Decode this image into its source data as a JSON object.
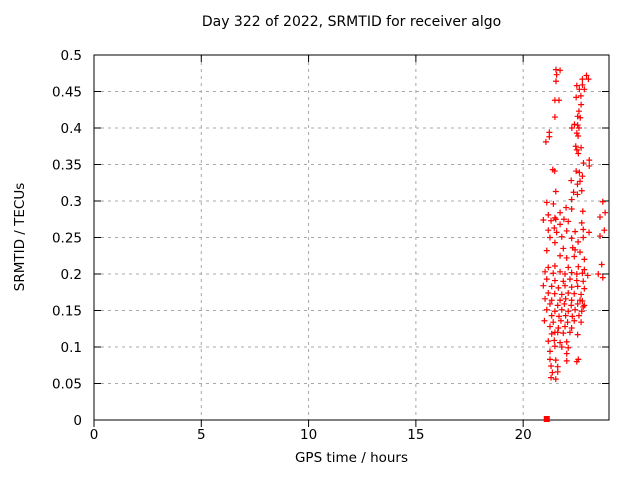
{
  "chart_data": {
    "type": "scatter",
    "title": "Day 322 of 2022, SRMTID for receiver algo",
    "xlabel": "GPS time / hours",
    "ylabel": "SRMTID / TECUs",
    "xlim": [
      0,
      24
    ],
    "ylim": [
      0,
      0.5
    ],
    "x_ticks": [
      0,
      5,
      10,
      15,
      20
    ],
    "y_ticks": [
      0,
      0.05,
      0.1,
      0.15,
      0.2,
      0.25,
      0.3,
      0.35,
      0.4,
      0.45,
      0.5
    ],
    "grid": true,
    "legend": "none",
    "colors": {
      "marker": "#ff0000",
      "grid": "#a8a8a8",
      "axis": "#000000",
      "text": "#000000",
      "background": "#ffffff"
    },
    "series": [
      {
        "name": "SRMTID",
        "marker": "plus",
        "color": "#ff0000",
        "points": [
          [
            21.53,
            0.48
          ],
          [
            21.72,
            0.479
          ],
          [
            21.56,
            0.473
          ],
          [
            21.53,
            0.464
          ],
          [
            22.95,
            0.472
          ],
          [
            22.76,
            0.467
          ],
          [
            23.04,
            0.467
          ],
          [
            22.76,
            0.459
          ],
          [
            22.5,
            0.458
          ],
          [
            22.62,
            0.453
          ],
          [
            22.85,
            0.453
          ],
          [
            22.47,
            0.442
          ],
          [
            22.69,
            0.444
          ],
          [
            21.48,
            0.438
          ],
          [
            21.67,
            0.438
          ],
          [
            22.7,
            0.432
          ],
          [
            22.6,
            0.423
          ],
          [
            22.54,
            0.416
          ],
          [
            21.48,
            0.415
          ],
          [
            22.66,
            0.414
          ],
          [
            22.39,
            0.405
          ],
          [
            22.54,
            0.404
          ],
          [
            22.6,
            0.4
          ],
          [
            22.27,
            0.4
          ],
          [
            21.22,
            0.394
          ],
          [
            22.5,
            0.393
          ],
          [
            21.22,
            0.388
          ],
          [
            22.56,
            0.389
          ],
          [
            21.06,
            0.381
          ],
          [
            22.45,
            0.375
          ],
          [
            22.7,
            0.373
          ],
          [
            22.5,
            0.37
          ],
          [
            22.57,
            0.365
          ],
          [
            23.08,
            0.356
          ],
          [
            22.81,
            0.352
          ],
          [
            23.08,
            0.348
          ],
          [
            21.38,
            0.343
          ],
          [
            21.47,
            0.341
          ],
          [
            22.47,
            0.341
          ],
          [
            22.62,
            0.339
          ],
          [
            22.76,
            0.334
          ],
          [
            22.65,
            0.327
          ],
          [
            22.24,
            0.328
          ],
          [
            22.53,
            0.323
          ],
          [
            21.52,
            0.313
          ],
          [
            22.35,
            0.312
          ],
          [
            22.53,
            0.309
          ],
          [
            22.73,
            0.314
          ],
          [
            21.1,
            0.298
          ],
          [
            21.41,
            0.296
          ],
          [
            22.26,
            0.302
          ],
          [
            23.71,
            0.299
          ],
          [
            22.0,
            0.291
          ],
          [
            22.26,
            0.289
          ],
          [
            23.82,
            0.284
          ],
          [
            22.78,
            0.286
          ],
          [
            21.72,
            0.284
          ],
          [
            21.17,
            0.281
          ],
          [
            23.58,
            0.278
          ],
          [
            21.48,
            0.277
          ],
          [
            21.9,
            0.275
          ],
          [
            21.52,
            0.275
          ],
          [
            20.94,
            0.274
          ],
          [
            21.3,
            0.273
          ],
          [
            22.1,
            0.272
          ],
          [
            22.73,
            0.27
          ],
          [
            21.72,
            0.268
          ],
          [
            21.45,
            0.263
          ],
          [
            22.8,
            0.261
          ],
          [
            21.17,
            0.26
          ],
          [
            23.78,
            0.26
          ],
          [
            22.03,
            0.259
          ],
          [
            21.56,
            0.257
          ],
          [
            23.07,
            0.257
          ],
          [
            22.42,
            0.258
          ],
          [
            23.58,
            0.252
          ],
          [
            21.25,
            0.25
          ],
          [
            21.8,
            0.251
          ],
          [
            22.26,
            0.249
          ],
          [
            22.8,
            0.25
          ],
          [
            21.48,
            0.243
          ],
          [
            22.56,
            0.244
          ],
          [
            21.87,
            0.235
          ],
          [
            22.31,
            0.236
          ],
          [
            21.1,
            0.232
          ],
          [
            22.42,
            0.233
          ],
          [
            22.65,
            0.23
          ],
          [
            21.72,
            0.225
          ],
          [
            22.38,
            0.224
          ],
          [
            22.03,
            0.222
          ],
          [
            22.85,
            0.22
          ],
          [
            21.48,
            0.211
          ],
          [
            23.66,
            0.213
          ],
          [
            21.17,
            0.209
          ],
          [
            22.1,
            0.209
          ],
          [
            22.57,
            0.21
          ],
          [
            22.85,
            0.206
          ],
          [
            21.02,
            0.203
          ],
          [
            21.4,
            0.201
          ],
          [
            21.72,
            0.203
          ],
          [
            21.95,
            0.2
          ],
          [
            22.26,
            0.202
          ],
          [
            22.5,
            0.2
          ],
          [
            22.76,
            0.201
          ],
          [
            23.01,
            0.198
          ],
          [
            23.5,
            0.2
          ],
          [
            21.1,
            0.193
          ],
          [
            21.48,
            0.191
          ],
          [
            21.87,
            0.19
          ],
          [
            22.18,
            0.193
          ],
          [
            22.5,
            0.191
          ],
          [
            22.8,
            0.19
          ],
          [
            23.71,
            0.195
          ],
          [
            20.94,
            0.184
          ],
          [
            21.33,
            0.183
          ],
          [
            21.64,
            0.181
          ],
          [
            21.95,
            0.184
          ],
          [
            22.26,
            0.182
          ],
          [
            22.54,
            0.183
          ],
          [
            22.85,
            0.18
          ],
          [
            21.17,
            0.174
          ],
          [
            21.47,
            0.173
          ],
          [
            21.8,
            0.172
          ],
          [
            22.1,
            0.174
          ],
          [
            22.38,
            0.173
          ],
          [
            22.7,
            0.172
          ],
          [
            21.02,
            0.166
          ],
          [
            21.33,
            0.164
          ],
          [
            21.72,
            0.164
          ],
          [
            21.98,
            0.166
          ],
          [
            22.26,
            0.164
          ],
          [
            22.65,
            0.164
          ],
          [
            22.76,
            0.163
          ],
          [
            21.25,
            0.159
          ],
          [
            21.61,
            0.157
          ],
          [
            21.92,
            0.159
          ],
          [
            22.24,
            0.157
          ],
          [
            22.54,
            0.159
          ],
          [
            22.85,
            0.157
          ],
          [
            22.8,
            0.155
          ],
          [
            21.1,
            0.151
          ],
          [
            21.48,
            0.149
          ],
          [
            21.8,
            0.151
          ],
          [
            22.1,
            0.149
          ],
          [
            22.42,
            0.151
          ],
          [
            22.73,
            0.149
          ],
          [
            21.33,
            0.143
          ],
          [
            21.67,
            0.142
          ],
          [
            21.98,
            0.143
          ],
          [
            22.29,
            0.142
          ],
          [
            22.6,
            0.143
          ],
          [
            20.99,
            0.136
          ],
          [
            21.4,
            0.134
          ],
          [
            21.76,
            0.136
          ],
          [
            22.07,
            0.134
          ],
          [
            22.38,
            0.136
          ],
          [
            22.7,
            0.134
          ],
          [
            21.25,
            0.128
          ],
          [
            21.64,
            0.126
          ],
          [
            21.95,
            0.128
          ],
          [
            22.26,
            0.126
          ],
          [
            21.48,
            0.12
          ],
          [
            21.87,
            0.119
          ],
          [
            22.18,
            0.12
          ],
          [
            21.33,
            0.118
          ],
          [
            21.61,
            0.12
          ],
          [
            22.54,
            0.117
          ],
          [
            21.17,
            0.108
          ],
          [
            21.45,
            0.109
          ],
          [
            21.72,
            0.106
          ],
          [
            22.03,
            0.107
          ],
          [
            21.48,
            0.101
          ],
          [
            21.8,
            0.1
          ],
          [
            22.1,
            0.099
          ],
          [
            21.25,
            0.094
          ],
          [
            22.03,
            0.091
          ],
          [
            21.25,
            0.083
          ],
          [
            21.52,
            0.082
          ],
          [
            22.03,
            0.081
          ],
          [
            22.5,
            0.08
          ],
          [
            22.57,
            0.083
          ],
          [
            21.3,
            0.074
          ],
          [
            21.61,
            0.073
          ],
          [
            21.36,
            0.065
          ],
          [
            21.61,
            0.066
          ],
          [
            21.3,
            0.058
          ],
          [
            21.52,
            0.056
          ]
        ]
      },
      {
        "name": "zero marker",
        "marker": "filled-square",
        "color": "#ff0000",
        "points": [
          [
            21.1,
            0
          ]
        ]
      }
    ]
  }
}
